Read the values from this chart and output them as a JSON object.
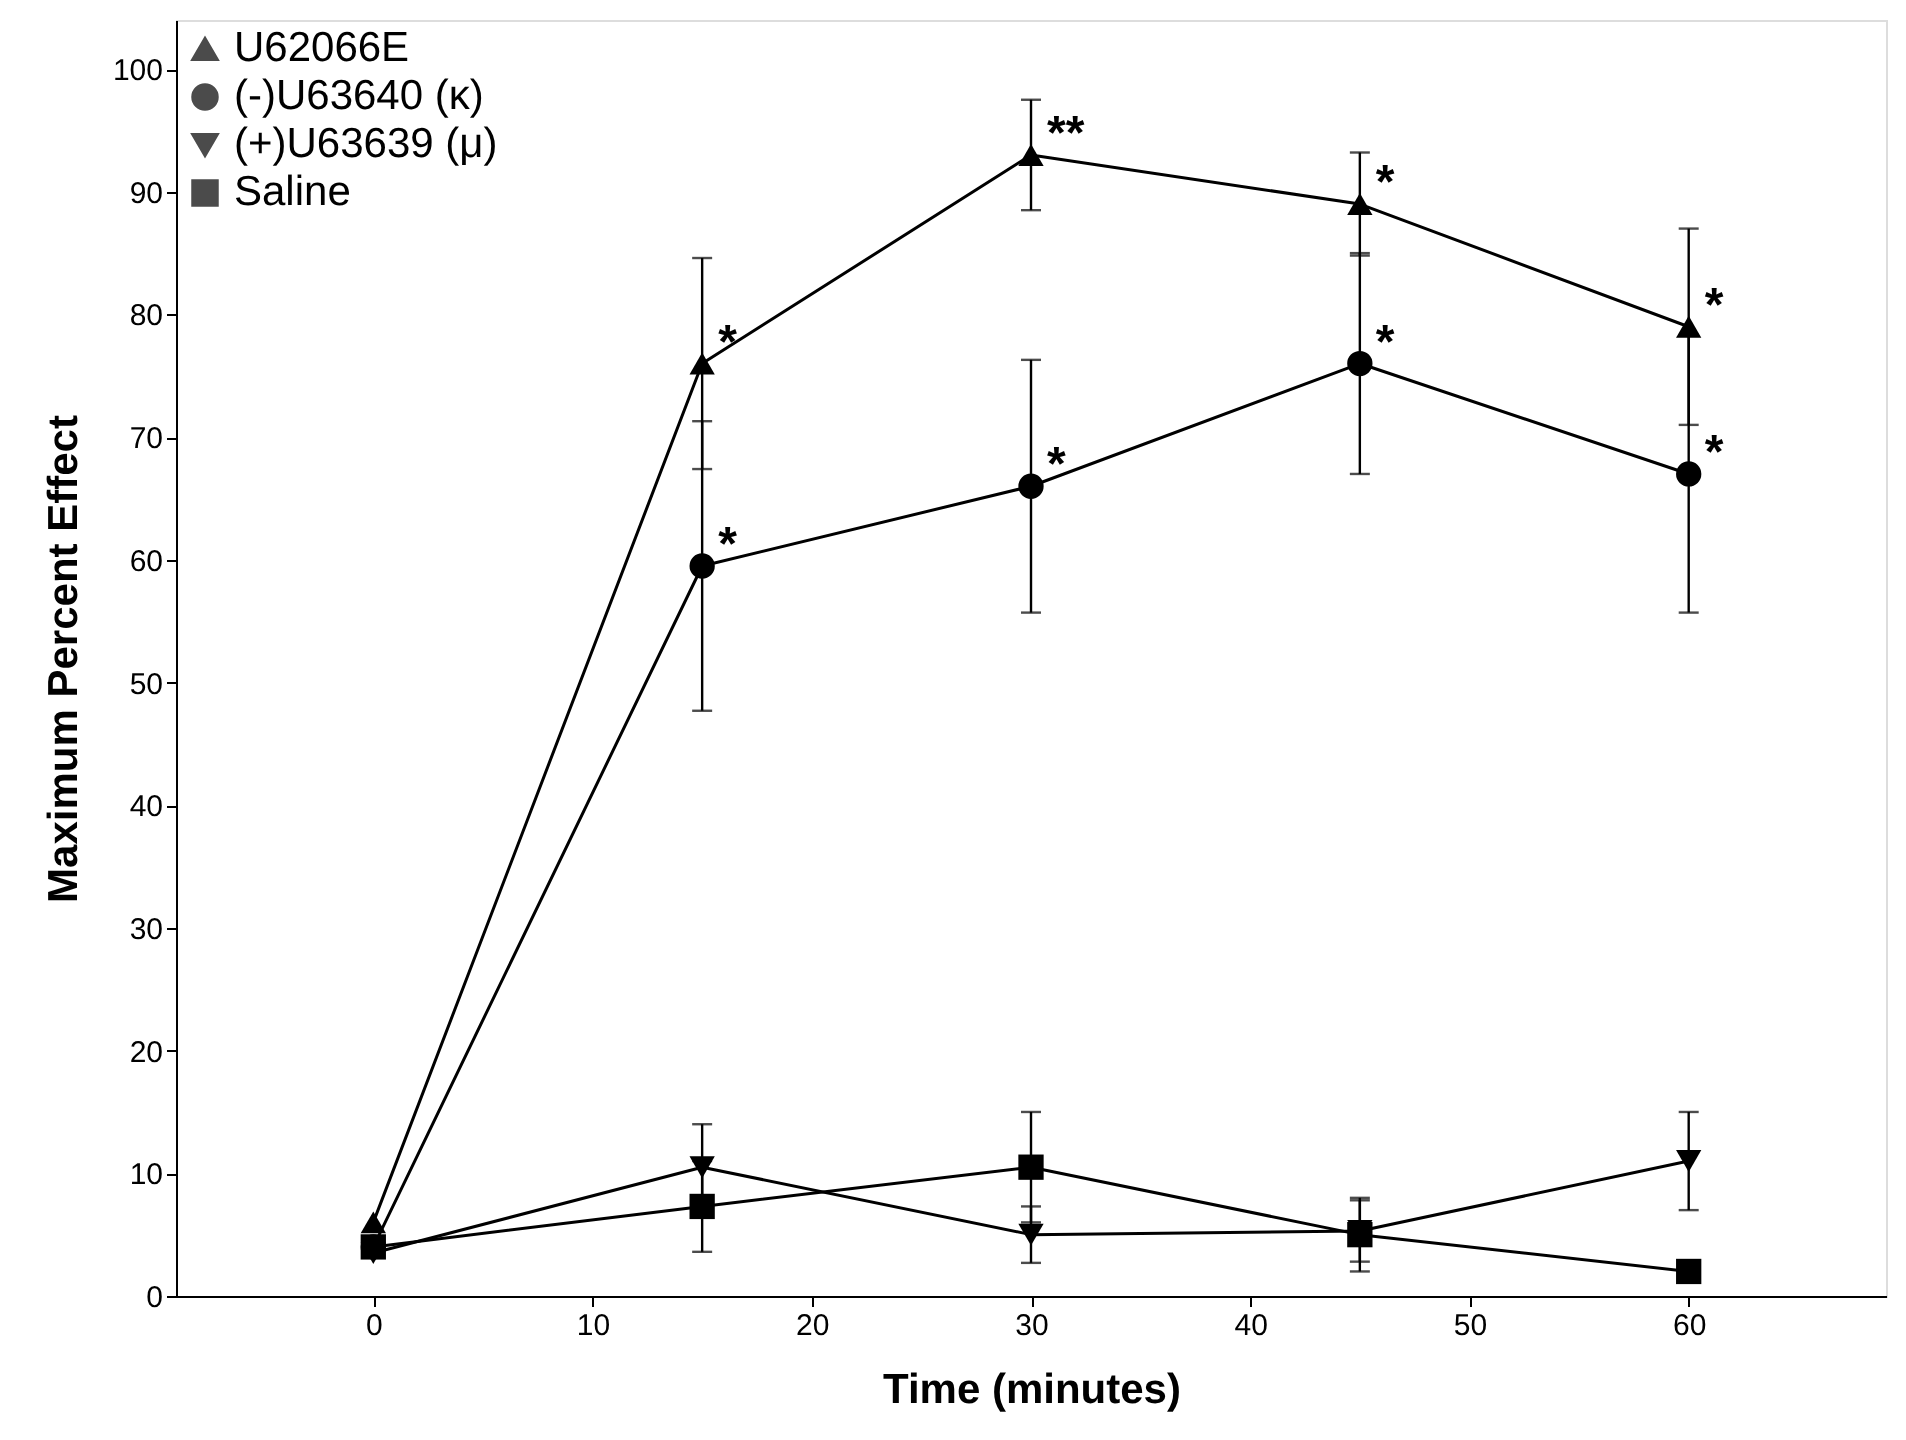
{
  "chart_data": {
    "type": "line",
    "xlabel": "Time (minutes)",
    "ylabel": "Maximum Percent Effect",
    "x": [
      0,
      15,
      30,
      45,
      60
    ],
    "xlim": [
      -9,
      69
    ],
    "xticks": [
      0,
      10,
      20,
      30,
      40,
      50,
      60
    ],
    "ylim": [
      0,
      104
    ],
    "yticks": [
      0,
      10,
      20,
      30,
      40,
      50,
      60,
      70,
      80,
      90,
      100
    ],
    "grid": false,
    "legend": "top left",
    "line_style": "solid",
    "series": [
      {
        "name": "U62066E",
        "color": "#000000",
        "marker": "triangle",
        "values": [
          6,
          76,
          93,
          89,
          79
        ],
        "errors": [
          null,
          8.6,
          4.5,
          4.2,
          8
        ]
      },
      {
        "name": "(-)U63640 (κ)",
        "color": "#000000",
        "marker": "circle",
        "values": [
          4,
          59.5,
          66,
          76,
          67
        ],
        "errors": [
          null,
          11.8,
          10.3,
          9,
          11.3
        ]
      },
      {
        "name": "(+)U63639 (μ)",
        "color": "#000000",
        "marker": "triangle-down",
        "values": [
          3.5,
          10.5,
          5,
          5.3,
          11
        ],
        "errors": [
          null,
          3.5,
          2.3,
          2.5,
          4
        ]
      },
      {
        "name": "Saline",
        "color": "#000000",
        "marker": "square",
        "values": [
          4,
          7.3,
          10.5,
          5,
          2
        ],
        "errors": [
          null,
          3.7,
          4.5,
          3,
          null
        ]
      }
    ],
    "annotations": [
      {
        "text": "*",
        "x": 15,
        "y": 76
      },
      {
        "text": "**",
        "x": 30,
        "y": 93
      },
      {
        "text": "*",
        "x": 45,
        "y": 89
      },
      {
        "text": "*",
        "x": 60,
        "y": 79
      },
      {
        "text": "*",
        "x": 15,
        "y": 59.5
      },
      {
        "text": "*",
        "x": 30,
        "y": 66
      },
      {
        "text": "*",
        "x": 45,
        "y": 76
      },
      {
        "text": "*",
        "x": 60,
        "y": 67
      }
    ]
  }
}
